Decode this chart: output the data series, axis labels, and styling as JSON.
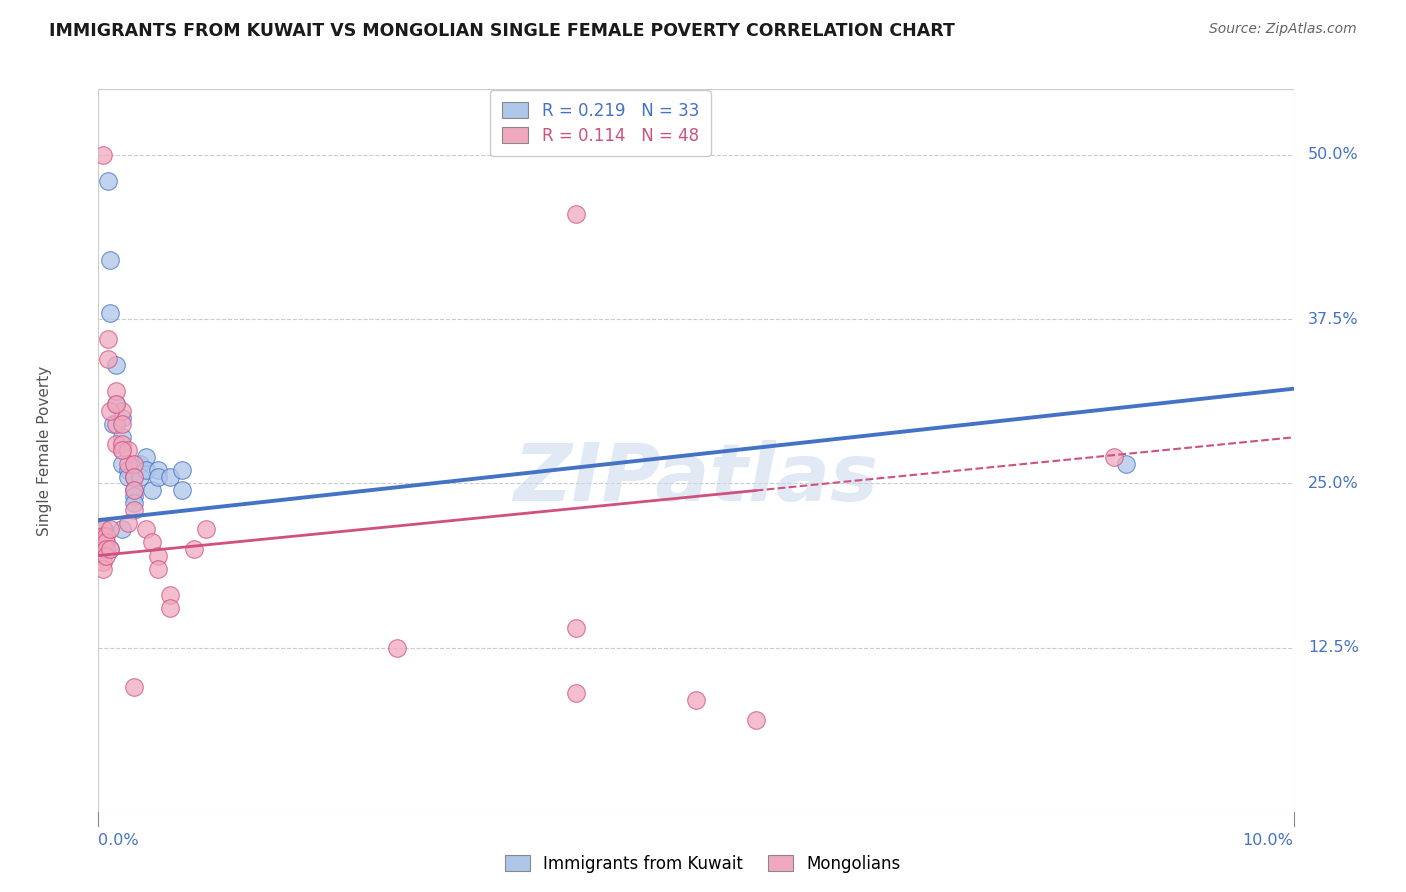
{
  "title": "IMMIGRANTS FROM KUWAIT VS MONGOLIAN SINGLE FEMALE POVERTY CORRELATION CHART",
  "source": "Source: ZipAtlas.com",
  "ylabel": "Single Female Poverty",
  "xlim": [
    0.0,
    0.1
  ],
  "ylim": [
    0.0,
    0.55
  ],
  "yticks": [
    0.125,
    0.25,
    0.375,
    0.5
  ],
  "ytick_labels": [
    "12.5%",
    "25.0%",
    "37.5%",
    "50.0%"
  ],
  "watermark": "ZIPatlas",
  "blue_color": "#4472c4",
  "pink_color": "#d05080",
  "blue_scatter_color": "#aec6e8",
  "pink_scatter_color": "#f0a8be",
  "axis_color": "#4472c4",
  "legend_label1": "R = 0.219   N = 33",
  "legend_label2": "R = 0.114   N = 48",
  "kuwait_points": [
    [
      0.0008,
      0.48
    ],
    [
      0.001,
      0.42
    ],
    [
      0.001,
      0.38
    ],
    [
      0.0012,
      0.295
    ],
    [
      0.0015,
      0.34
    ],
    [
      0.0015,
      0.31
    ],
    [
      0.002,
      0.3
    ],
    [
      0.002,
      0.285
    ],
    [
      0.002,
      0.275
    ],
    [
      0.002,
      0.265
    ],
    [
      0.0025,
      0.26
    ],
    [
      0.0025,
      0.255
    ],
    [
      0.003,
      0.255
    ],
    [
      0.003,
      0.245
    ],
    [
      0.003,
      0.24
    ],
    [
      0.003,
      0.235
    ],
    [
      0.0035,
      0.265
    ],
    [
      0.0035,
      0.255
    ],
    [
      0.004,
      0.27
    ],
    [
      0.004,
      0.26
    ],
    [
      0.0045,
      0.245
    ],
    [
      0.005,
      0.26
    ],
    [
      0.005,
      0.255
    ],
    [
      0.006,
      0.255
    ],
    [
      0.007,
      0.26
    ],
    [
      0.007,
      0.245
    ],
    [
      0.0005,
      0.215
    ],
    [
      0.0005,
      0.21
    ],
    [
      0.0005,
      0.205
    ],
    [
      0.0005,
      0.2
    ],
    [
      0.086,
      0.265
    ],
    [
      0.002,
      0.215
    ],
    [
      0.001,
      0.2
    ]
  ],
  "mongolian_points": [
    [
      0.0004,
      0.5
    ],
    [
      0.0004,
      0.215
    ],
    [
      0.0004,
      0.21
    ],
    [
      0.0004,
      0.205
    ],
    [
      0.0004,
      0.2
    ],
    [
      0.0004,
      0.195
    ],
    [
      0.0004,
      0.19
    ],
    [
      0.0004,
      0.185
    ],
    [
      0.0006,
      0.21
    ],
    [
      0.0006,
      0.205
    ],
    [
      0.0006,
      0.2
    ],
    [
      0.0006,
      0.195
    ],
    [
      0.001,
      0.215
    ],
    [
      0.001,
      0.2
    ],
    [
      0.0015,
      0.295
    ],
    [
      0.0015,
      0.28
    ],
    [
      0.002,
      0.305
    ],
    [
      0.002,
      0.28
    ],
    [
      0.0025,
      0.275
    ],
    [
      0.0025,
      0.265
    ],
    [
      0.003,
      0.265
    ],
    [
      0.003,
      0.255
    ],
    [
      0.003,
      0.245
    ],
    [
      0.003,
      0.23
    ],
    [
      0.004,
      0.215
    ],
    [
      0.0045,
      0.205
    ],
    [
      0.005,
      0.195
    ],
    [
      0.005,
      0.185
    ],
    [
      0.006,
      0.165
    ],
    [
      0.006,
      0.155
    ],
    [
      0.008,
      0.2
    ],
    [
      0.009,
      0.215
    ],
    [
      0.025,
      0.125
    ],
    [
      0.04,
      0.455
    ],
    [
      0.04,
      0.14
    ],
    [
      0.04,
      0.09
    ],
    [
      0.05,
      0.085
    ],
    [
      0.055,
      0.07
    ],
    [
      0.085,
      0.27
    ],
    [
      0.0008,
      0.36
    ],
    [
      0.0008,
      0.345
    ],
    [
      0.001,
      0.305
    ],
    [
      0.0015,
      0.32
    ],
    [
      0.0015,
      0.31
    ],
    [
      0.002,
      0.295
    ],
    [
      0.002,
      0.275
    ],
    [
      0.0025,
      0.22
    ],
    [
      0.003,
      0.095
    ]
  ],
  "blue_line_x": [
    0.0,
    0.1
  ],
  "blue_line_y": [
    0.222,
    0.322
  ],
  "pink_line_x": [
    0.0,
    0.1
  ],
  "pink_line_y": [
    0.195,
    0.285
  ]
}
